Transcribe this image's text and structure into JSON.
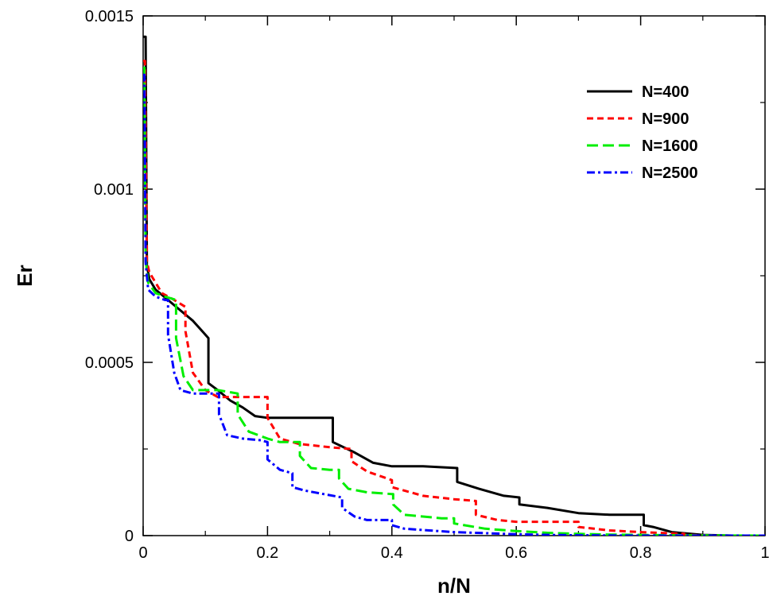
{
  "chart_data": {
    "type": "line",
    "title": "",
    "xlabel": "n/N",
    "ylabel": "Er",
    "xlim": [
      0,
      1
    ],
    "ylim": [
      0,
      0.0015
    ],
    "xticks": [
      0,
      0.2,
      0.4,
      0.6,
      0.8,
      1
    ],
    "xtick_labels": [
      "0",
      "0.2",
      "0.4",
      "0.6",
      "0.8",
      "1"
    ],
    "yticks": [
      0,
      0.0005,
      0.001,
      0.0015
    ],
    "ytick_labels": [
      "0",
      "0.0005",
      "0.001",
      "0.0015"
    ],
    "grid": false,
    "legend_position": "top-right",
    "series": [
      {
        "name": "N=400",
        "color": "#000000",
        "dash": "solid",
        "x": [
          0.0,
          0.004,
          0.006,
          0.01,
          0.02,
          0.04,
          0.06,
          0.08,
          0.1,
          0.105,
          0.105,
          0.12,
          0.14,
          0.16,
          0.18,
          0.2,
          0.25,
          0.305,
          0.305,
          0.34,
          0.37,
          0.4,
          0.45,
          0.505,
          0.505,
          0.54,
          0.58,
          0.605,
          0.605,
          0.65,
          0.7,
          0.75,
          0.805,
          0.805,
          0.82,
          0.85,
          0.9,
          0.95,
          1.0
        ],
        "y": [
          0.00144,
          0.00144,
          0.00078,
          0.00074,
          0.00071,
          0.00068,
          0.00065,
          0.00062,
          0.00058,
          0.00057,
          0.00044,
          0.00042,
          0.00039,
          0.00037,
          0.000345,
          0.00034,
          0.00034,
          0.00034,
          0.00027,
          0.00024,
          0.00021,
          0.0002,
          0.0002,
          0.000195,
          0.000155,
          0.000135,
          0.000115,
          0.00011,
          9e-05,
          8e-05,
          6.5e-05,
          6e-05,
          6e-05,
          3e-05,
          2.5e-05,
          1e-05,
          2e-06,
          0.0,
          0.0
        ]
      },
      {
        "name": "N=900",
        "color": "#ff0000",
        "dash": "8,5",
        "x": [
          0.0,
          0.003,
          0.006,
          0.01,
          0.03,
          0.05,
          0.068,
          0.068,
          0.08,
          0.1,
          0.12,
          0.14,
          0.16,
          0.18,
          0.2,
          0.2,
          0.22,
          0.25,
          0.3,
          0.335,
          0.335,
          0.36,
          0.4,
          0.4,
          0.45,
          0.5,
          0.535,
          0.535,
          0.57,
          0.6,
          0.65,
          0.7,
          0.7,
          0.75,
          0.8,
          0.87,
          0.87,
          0.92,
          1.0
        ],
        "y": [
          0.00137,
          0.00137,
          0.00079,
          0.00076,
          0.0007,
          0.00068,
          0.00066,
          0.00059,
          0.00047,
          0.00042,
          0.0004,
          0.0004,
          0.0004,
          0.0004,
          0.0004,
          0.00034,
          0.00028,
          0.000265,
          0.000255,
          0.00025,
          0.000215,
          0.000185,
          0.00016,
          0.00014,
          0.000115,
          0.000105,
          0.0001,
          6e-05,
          4.5e-05,
          4e-05,
          4e-05,
          4e-05,
          2.5e-05,
          1.5e-05,
          1e-05,
          5e-06,
          2e-06,
          0.0,
          0.0
        ]
      },
      {
        "name": "N=1600",
        "color": "#00ee00",
        "dash": "14,6",
        "x": [
          0.0,
          0.002,
          0.004,
          0.008,
          0.02,
          0.035,
          0.053,
          0.053,
          0.065,
          0.08,
          0.1,
          0.12,
          0.152,
          0.152,
          0.17,
          0.2,
          0.22,
          0.252,
          0.252,
          0.27,
          0.3,
          0.315,
          0.315,
          0.33,
          0.36,
          0.4,
          0.402,
          0.402,
          0.42,
          0.45,
          0.48,
          0.5,
          0.5,
          0.55,
          0.6,
          0.65,
          0.7,
          0.75,
          0.8,
          0.85,
          1.0
        ],
        "y": [
          0.00135,
          0.00135,
          0.0008,
          0.00073,
          0.0007,
          0.00069,
          0.00068,
          0.00057,
          0.00046,
          0.00042,
          0.00042,
          0.00042,
          0.00041,
          0.00035,
          0.0003,
          0.00028,
          0.00027,
          0.00027,
          0.00023,
          0.000195,
          0.00019,
          0.00019,
          0.000165,
          0.000135,
          0.000125,
          0.00012,
          0.00012,
          9e-05,
          6e-05,
          5.5e-05,
          5e-05,
          5e-05,
          3.5e-05,
          2e-05,
          1.3e-05,
          8e-06,
          5e-06,
          3e-06,
          2e-06,
          1e-06,
          0.0
        ]
      },
      {
        "name": "N=2500",
        "color": "#0000ff",
        "dash": "10,4,3,4",
        "x": [
          0.0,
          0.002,
          0.004,
          0.008,
          0.02,
          0.035,
          0.04,
          0.04,
          0.05,
          0.06,
          0.08,
          0.1,
          0.12,
          0.122,
          0.122,
          0.135,
          0.16,
          0.19,
          0.2,
          0.2,
          0.22,
          0.24,
          0.24,
          0.26,
          0.29,
          0.32,
          0.32,
          0.34,
          0.36,
          0.4,
          0.4,
          0.42,
          0.46,
          0.5,
          0.55,
          0.6,
          0.65,
          0.7,
          0.8,
          0.9,
          1.0
        ],
        "y": [
          0.00133,
          0.00133,
          0.00079,
          0.00071,
          0.00069,
          0.00068,
          0.00068,
          0.00058,
          0.00047,
          0.00042,
          0.00041,
          0.00041,
          0.00041,
          0.00041,
          0.00035,
          0.00029,
          0.00028,
          0.000275,
          0.00027,
          0.00022,
          0.00019,
          0.00018,
          0.00014,
          0.00013,
          0.00012,
          0.00011,
          8e-05,
          5.5e-05,
          4.5e-05,
          4.5e-05,
          3e-05,
          2e-05,
          1.5e-05,
          1e-05,
          7e-06,
          4e-06,
          2e-06,
          1e-06,
          0.0,
          0.0,
          0.0
        ]
      }
    ]
  }
}
